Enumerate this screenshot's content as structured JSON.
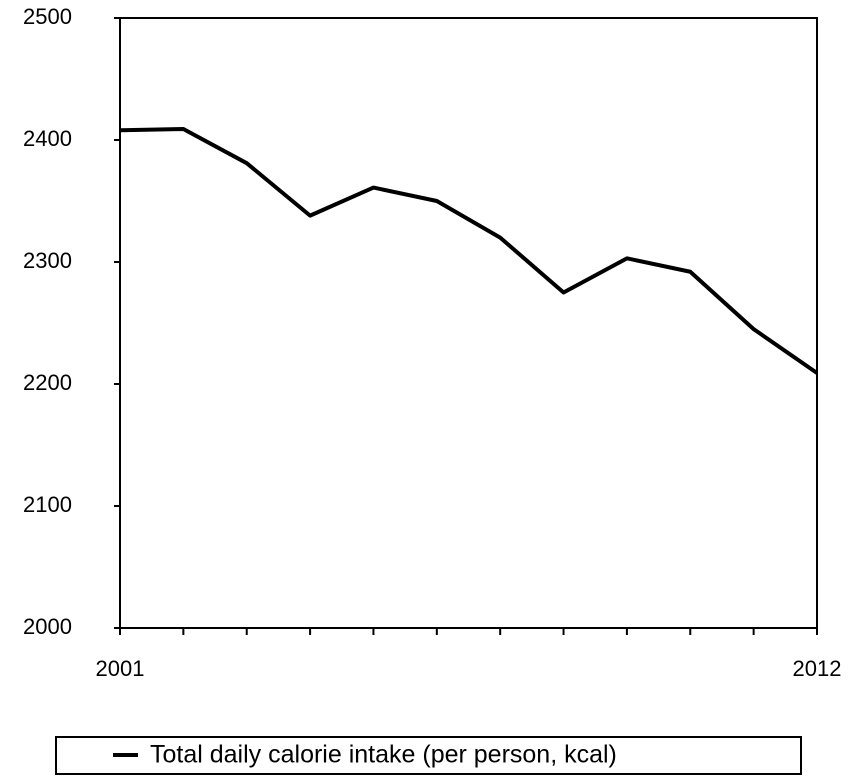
{
  "chart_data": {
    "type": "line",
    "categories": [
      "2001",
      null,
      null,
      null,
      null,
      null,
      null,
      null,
      null,
      null,
      null,
      "2012"
    ],
    "series": [
      {
        "name": "Total daily calorie intake (per person, kcal)",
        "color": "#000000",
        "values": [
          2408,
          2409,
          2381,
          2338,
          2361,
          2350,
          2320,
          2275,
          2303,
          2292,
          2245,
          2209
        ]
      }
    ],
    "ylim": [
      2000,
      2500
    ],
    "yticks": [
      2000,
      2100,
      2200,
      2300,
      2400,
      2500
    ],
    "legend": "bottom"
  }
}
